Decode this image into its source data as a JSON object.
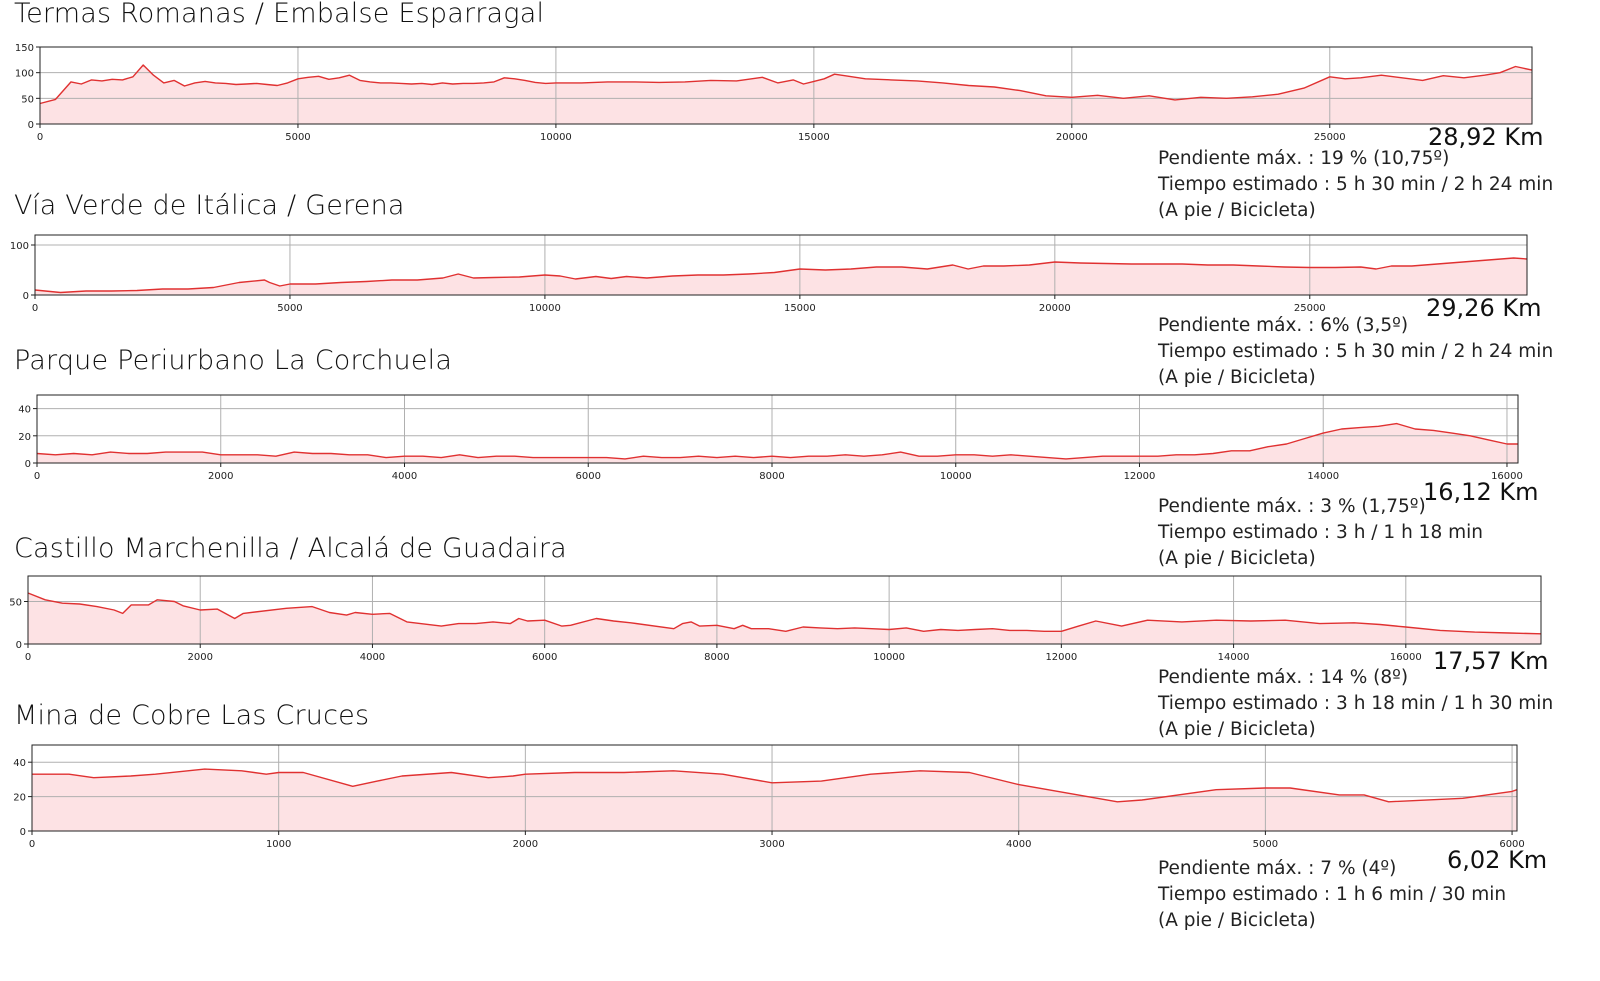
{
  "colors": {
    "line": "#e03131",
    "fill": "#fde2e4",
    "grid": "#b0b0b0",
    "axis": "#222222"
  },
  "info_labels": {
    "slope_prefix": "Pendiente máx. : ",
    "time_prefix": "Tiempo estimado : ",
    "mode": "(A pie / Bicicleta)"
  },
  "chart_data": [
    {
      "type": "area",
      "title": "Termas Romanas / Embalse Esparragal",
      "distance": "28,92 Km",
      "slope": "Pendiente máx. : 19 % (10,75º)",
      "time": "Tiempo estimado : 5 h 30 min / 2 h 24 min",
      "mode": "(A pie / Bicicleta)",
      "xlim": [
        0,
        28920
      ],
      "ylim": [
        0,
        150
      ],
      "xticks": [
        0,
        5000,
        10000,
        15000,
        20000,
        25000
      ],
      "yticks": [
        0,
        50,
        100,
        150
      ],
      "x": [
        0,
        300,
        600,
        800,
        1000,
        1200,
        1400,
        1600,
        1800,
        2000,
        2200,
        2400,
        2600,
        2800,
        3000,
        3200,
        3400,
        3600,
        3800,
        4000,
        4200,
        4400,
        4600,
        4800,
        5000,
        5200,
        5400,
        5600,
        5800,
        6000,
        6200,
        6400,
        6600,
        6800,
        7000,
        7200,
        7400,
        7600,
        7800,
        8000,
        8200,
        8400,
        8600,
        8800,
        9000,
        9200,
        9400,
        9600,
        9800,
        10000,
        10500,
        11000,
        11500,
        12000,
        12500,
        13000,
        13500,
        14000,
        14300,
        14600,
        14800,
        15000,
        15200,
        15400,
        15600,
        16000,
        16500,
        17000,
        17500,
        18000,
        18500,
        19000,
        19500,
        20000,
        20500,
        21000,
        21500,
        22000,
        22500,
        23000,
        23500,
        24000,
        24500,
        25000,
        25300,
        25600,
        26000,
        26400,
        26800,
        27200,
        27600,
        28000,
        28300,
        28600,
        28920
      ],
      "y": [
        40,
        48,
        82,
        78,
        86,
        84,
        87,
        86,
        92,
        115,
        95,
        80,
        85,
        74,
        80,
        83,
        80,
        79,
        77,
        78,
        79,
        77,
        75,
        80,
        88,
        91,
        93,
        87,
        90,
        95,
        85,
        82,
        80,
        80,
        79,
        78,
        79,
        77,
        80,
        78,
        79,
        79,
        80,
        82,
        90,
        88,
        85,
        81,
        79,
        80,
        80,
        82,
        82,
        81,
        82,
        85,
        84,
        91,
        80,
        86,
        78,
        83,
        88,
        97,
        94,
        88,
        86,
        84,
        80,
        75,
        72,
        65,
        55,
        52,
        56,
        50,
        55,
        47,
        52,
        50,
        53,
        58,
        70,
        92,
        88,
        90,
        95,
        90,
        85,
        94,
        90,
        95,
        100,
        112,
        105
      ]
    },
    {
      "type": "area",
      "title": "Vía Verde de Itálica / Gerena",
      "distance": "29,26 Km",
      "slope": "Pendiente máx. : 6% (3,5º)",
      "time": "Tiempo estimado : 5 h 30 min / 2 h 24 min",
      "mode": "(A pie / Bicicleta)",
      "xlim": [
        0,
        29260
      ],
      "ylim": [
        0,
        120
      ],
      "xticks": [
        0,
        5000,
        10000,
        15000,
        20000,
        25000
      ],
      "yticks": [
        0,
        100
      ],
      "x": [
        0,
        500,
        1000,
        1500,
        2000,
        2500,
        3000,
        3500,
        4000,
        4500,
        4600,
        4800,
        5000,
        5500,
        6000,
        6500,
        7000,
        7500,
        8000,
        8300,
        8600,
        9000,
        9500,
        10000,
        10300,
        10600,
        11000,
        11300,
        11600,
        12000,
        12500,
        13000,
        13500,
        14000,
        14500,
        15000,
        15500,
        16000,
        16500,
        17000,
        17500,
        18000,
        18300,
        18600,
        19000,
        19500,
        20000,
        20500,
        21000,
        21500,
        22000,
        22500,
        23000,
        23500,
        24000,
        24500,
        25000,
        25500,
        26000,
        26300,
        26600,
        27000,
        27500,
        28000,
        28500,
        29000,
        29260
      ],
      "y": [
        10,
        5,
        8,
        8,
        9,
        12,
        12,
        15,
        25,
        30,
        25,
        18,
        22,
        22,
        25,
        27,
        30,
        30,
        34,
        42,
        34,
        35,
        36,
        40,
        38,
        32,
        37,
        33,
        37,
        34,
        38,
        40,
        40,
        42,
        45,
        52,
        50,
        52,
        56,
        56,
        52,
        60,
        52,
        58,
        58,
        60,
        66,
        64,
        63,
        62,
        62,
        62,
        60,
        60,
        58,
        56,
        55,
        55,
        56,
        52,
        58,
        58,
        62,
        66,
        70,
        74,
        72
      ]
    },
    {
      "type": "area",
      "title": "Parque Periurbano La Corchuela",
      "distance": "16,12 Km",
      "slope": "Pendiente máx. : 3 % (1,75º)",
      "time": "Tiempo estimado : 3 h  / 1 h 18 min",
      "mode": "(A pie / Bicicleta)",
      "xlim": [
        0,
        16120
      ],
      "ylim": [
        0,
        50
      ],
      "xticks": [
        0,
        2000,
        4000,
        6000,
        8000,
        10000,
        12000,
        14000,
        16000
      ],
      "yticks": [
        0,
        20,
        40
      ],
      "x": [
        0,
        200,
        400,
        600,
        800,
        1000,
        1200,
        1400,
        1600,
        1800,
        2000,
        2200,
        2400,
        2600,
        2800,
        3000,
        3200,
        3400,
        3600,
        3800,
        4000,
        4200,
        4400,
        4600,
        4800,
        5000,
        5200,
        5400,
        5600,
        5800,
        6000,
        6200,
        6400,
        6600,
        6800,
        7000,
        7200,
        7400,
        7600,
        7800,
        8000,
        8200,
        8400,
        8600,
        8800,
        9000,
        9200,
        9400,
        9600,
        9800,
        10000,
        10200,
        10400,
        10600,
        10800,
        11000,
        11200,
        11400,
        11600,
        11800,
        12000,
        12200,
        12400,
        12600,
        12800,
        13000,
        13200,
        13400,
        13600,
        13800,
        14000,
        14200,
        14400,
        14600,
        14800,
        15000,
        15200,
        15400,
        15600,
        15800,
        16000,
        16120
      ],
      "y": [
        7,
        6,
        7,
        6,
        8,
        7,
        7,
        8,
        8,
        8,
        6,
        6,
        6,
        5,
        8,
        7,
        7,
        6,
        6,
        4,
        5,
        5,
        4,
        6,
        4,
        5,
        5,
        4,
        4,
        4,
        4,
        4,
        3,
        5,
        4,
        4,
        5,
        4,
        5,
        4,
        5,
        4,
        5,
        5,
        6,
        5,
        6,
        8,
        5,
        5,
        6,
        6,
        5,
        6,
        5,
        4,
        3,
        4,
        5,
        5,
        5,
        5,
        6,
        6,
        7,
        9,
        9,
        12,
        14,
        18,
        22,
        25,
        26,
        27,
        29,
        25,
        24,
        22,
        20,
        17,
        14,
        14
      ]
    },
    {
      "type": "area",
      "title": "Castillo Marchenilla / Alcalá de Guadaira",
      "distance": "17,57 Km",
      "slope": "Pendiente máx. : 14 % (8º)",
      "time": "Tiempo estimado : 3 h 18 min / 1 h 30 min",
      "mode": "(A pie / Bicicleta)",
      "xlim": [
        0,
        17570
      ],
      "ylim": [
        0,
        80
      ],
      "xticks": [
        0,
        2000,
        4000,
        6000,
        8000,
        10000,
        12000,
        14000,
        16000
      ],
      "yticks": [
        0,
        50
      ],
      "x": [
        0,
        200,
        400,
        600,
        800,
        1000,
        1100,
        1200,
        1400,
        1500,
        1700,
        1800,
        2000,
        2200,
        2400,
        2500,
        3000,
        3300,
        3500,
        3700,
        3800,
        4000,
        4200,
        4400,
        4800,
        5000,
        5200,
        5400,
        5600,
        5700,
        5800,
        6000,
        6200,
        6300,
        6600,
        6800,
        7000,
        7500,
        7600,
        7700,
        7800,
        8000,
        8200,
        8300,
        8400,
        8600,
        8800,
        9000,
        9200,
        9400,
        9600,
        9800,
        10000,
        10200,
        10400,
        10600,
        10800,
        11000,
        11200,
        11400,
        11600,
        11800,
        12000,
        12200,
        12400,
        12700,
        13000,
        13400,
        13800,
        14200,
        14600,
        15000,
        15400,
        15700,
        16000,
        16400,
        16800,
        17200,
        17570
      ],
      "y": [
        60,
        52,
        48,
        47,
        44,
        40,
        36,
        46,
        46,
        52,
        50,
        45,
        40,
        41,
        30,
        36,
        42,
        44,
        37,
        34,
        37,
        35,
        36,
        26,
        21,
        24,
        24,
        26,
        24,
        30,
        27,
        28,
        21,
        22,
        30,
        27,
        25,
        18,
        24,
        26,
        21,
        22,
        18,
        22,
        18,
        18,
        15,
        20,
        19,
        18,
        19,
        18,
        17,
        19,
        15,
        17,
        16,
        17,
        18,
        16,
        16,
        15,
        15,
        21,
        27,
        21,
        28,
        26,
        28,
        27,
        28,
        24,
        25,
        23,
        20,
        16,
        14,
        13,
        12
      ]
    },
    {
      "type": "area",
      "title": "Mina de Cobre Las Cruces",
      "distance": "6,02 Km",
      "slope": "Pendiente máx. : 7 % (4º)",
      "time": "Tiempo estimado : 1 h 6 min / 30 min",
      "mode": "(A pie / Bicicleta)",
      "xlim": [
        0,
        6020
      ],
      "ylim": [
        0,
        50
      ],
      "xticks": [
        0,
        1000,
        2000,
        3000,
        4000,
        5000,
        6000
      ],
      "yticks": [
        0,
        20,
        40
      ],
      "x": [
        0,
        150,
        250,
        400,
        500,
        700,
        850,
        950,
        1000,
        1100,
        1300,
        1400,
        1500,
        1700,
        1850,
        1950,
        2000,
        2200,
        2400,
        2600,
        2800,
        3000,
        3200,
        3400,
        3600,
        3800,
        4000,
        4200,
        4400,
        4500,
        4800,
        5000,
        5100,
        5300,
        5400,
        5500,
        5800,
        6000,
        6020
      ],
      "y": [
        33,
        33,
        31,
        32,
        33,
        36,
        35,
        33,
        34,
        34,
        26,
        29,
        32,
        34,
        31,
        32,
        33,
        34,
        34,
        35,
        33,
        28,
        29,
        33,
        35,
        34,
        27,
        22,
        17,
        18,
        24,
        25,
        25,
        21,
        21,
        17,
        19,
        23,
        24
      ]
    }
  ]
}
